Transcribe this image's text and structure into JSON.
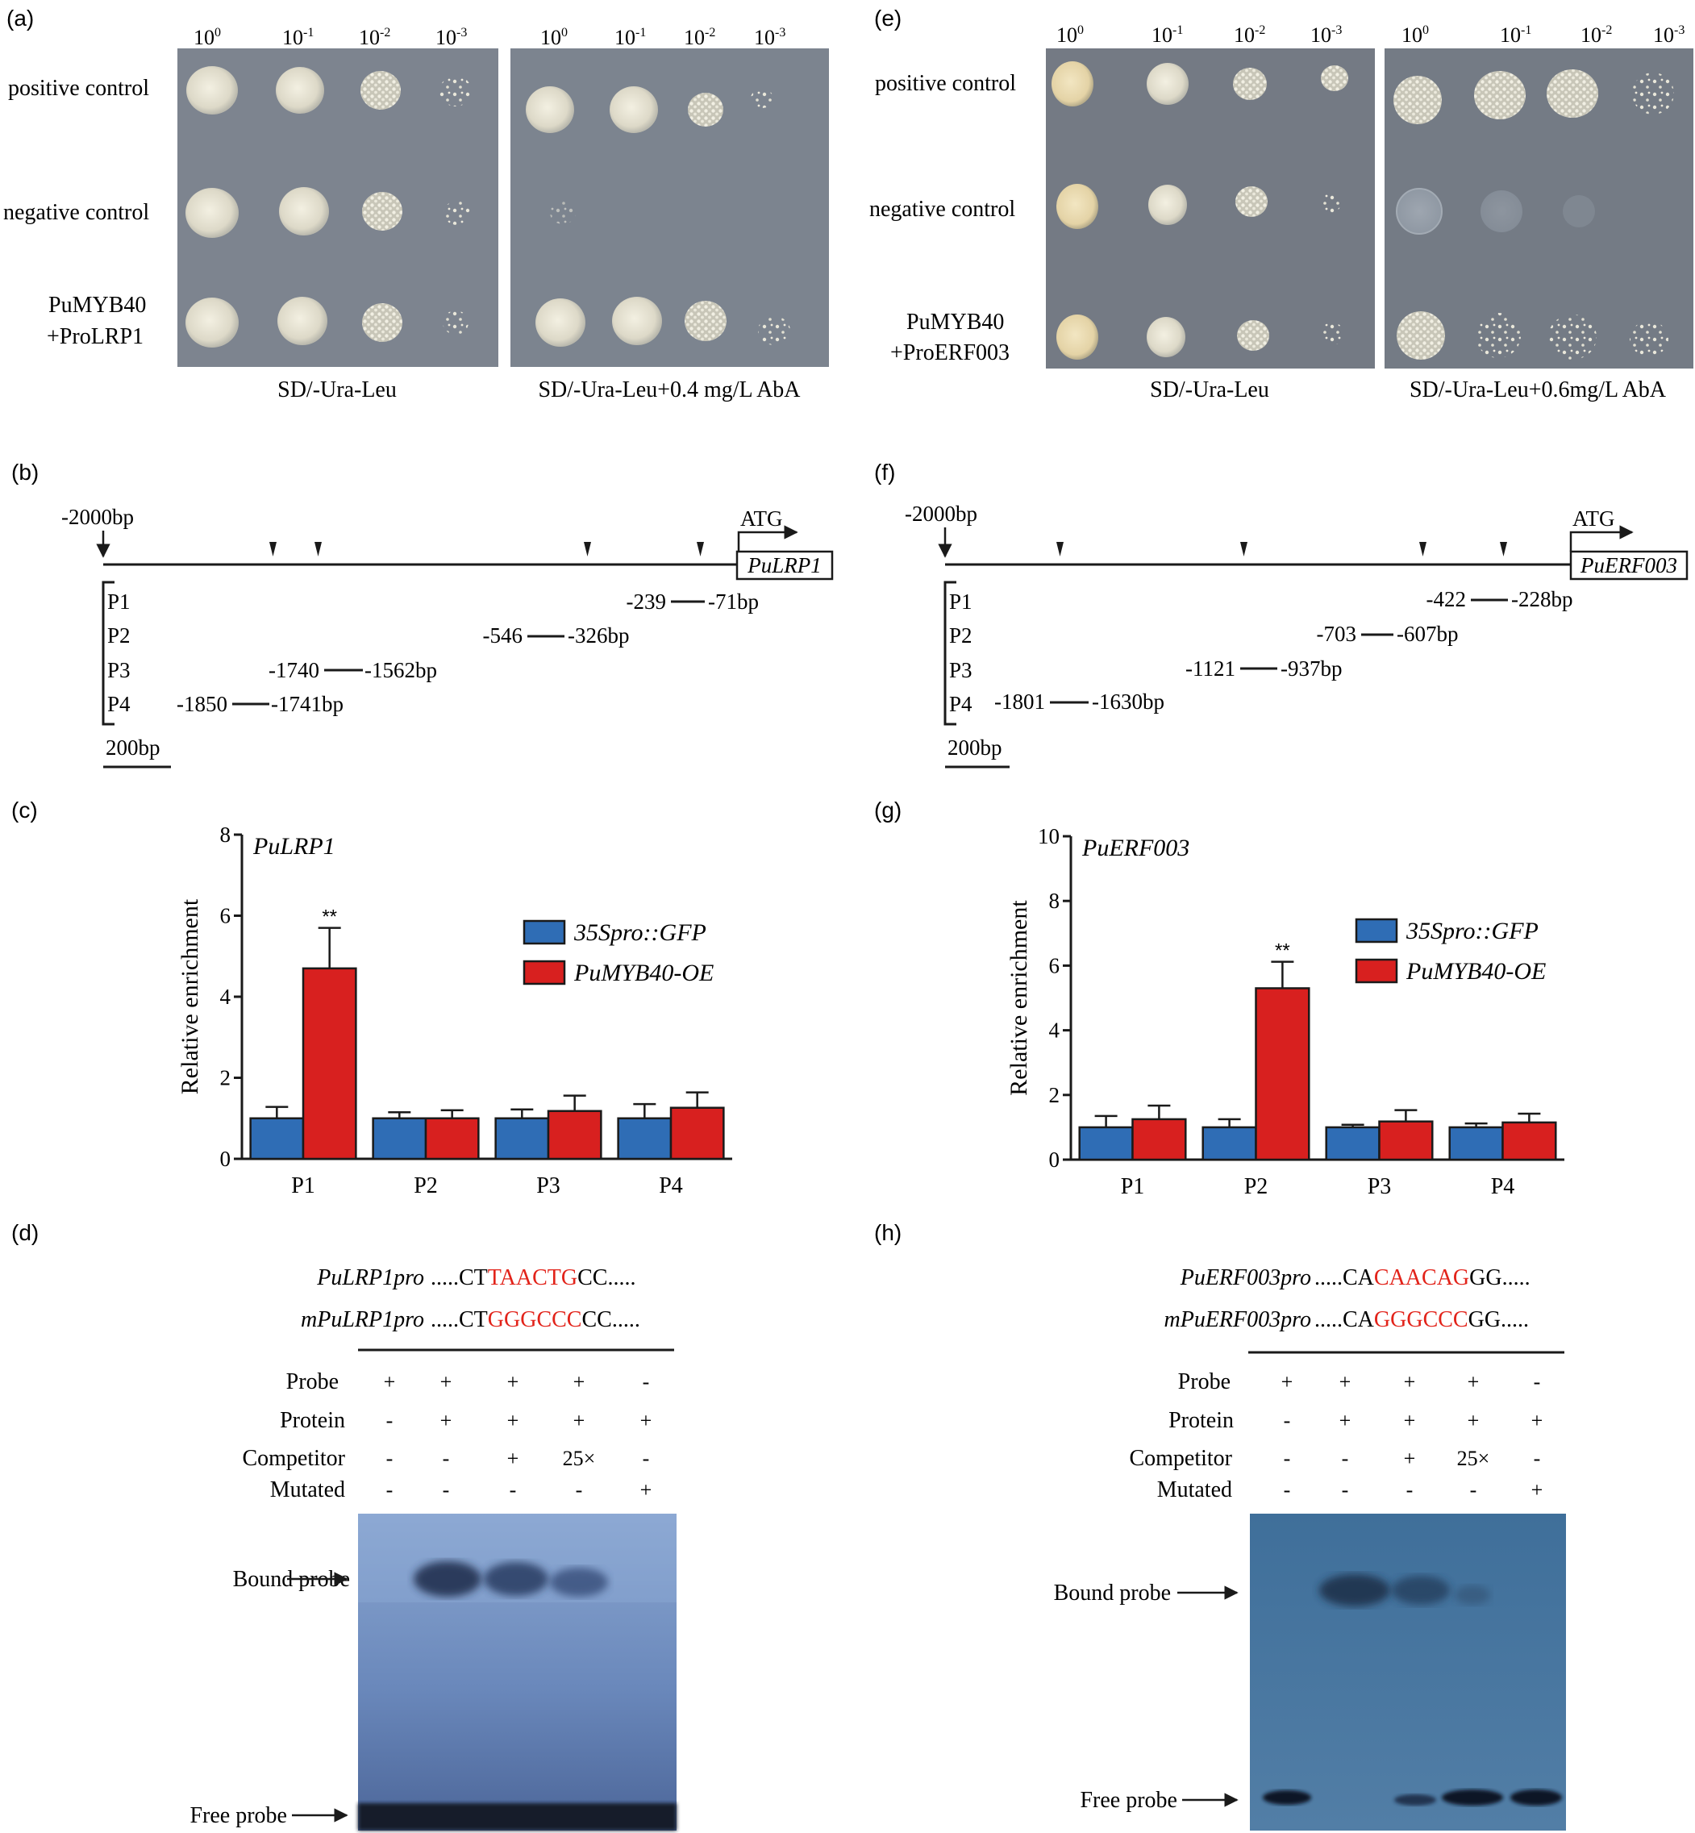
{
  "colors": {
    "gfp": "#2f6db5",
    "oe": "#d8201f",
    "motif": "#e2231a"
  },
  "panels": {
    "a": {
      "label": "(a)",
      "dilutions": [
        "10",
        "10",
        "10",
        "10"
      ],
      "exponents": [
        "0",
        "-1",
        "-2",
        "-3"
      ],
      "rows": {
        "positive": "positive control",
        "negative": "negative control",
        "sample_line1": "PuMYB40",
        "sample_line2": "+ProLRP1"
      },
      "plate_left_label": "SD/-Ura-Leu",
      "plate_right_label": "SD/-Ura-Leu+0.4 mg/L AbA"
    },
    "e": {
      "label": "(e)",
      "dilutions": [
        "10",
        "10",
        "10",
        "10"
      ],
      "exponents": [
        "0",
        "-1",
        "-2",
        "-3"
      ],
      "rows": {
        "positive": "positive control",
        "negative": "negative control",
        "sample_line1": "PuMYB40",
        "sample_line2": "+ProERF003"
      },
      "plate_left_label": "SD/-Ura-Leu",
      "plate_right_label": "SD/-Ura-Leu+0.6mg/L AbA"
    },
    "b": {
      "label": "(b)",
      "start": "-2000bp",
      "atg": "ATG",
      "gene": "PuLRP1",
      "probes": [
        {
          "name": "P1",
          "from": "-239",
          "to": "-71bp"
        },
        {
          "name": "P2",
          "from": "-546",
          "to": "-326bp"
        },
        {
          "name": "P3",
          "from": "-1740",
          "to": "-1562bp"
        },
        {
          "name": "P4",
          "from": "-1850",
          "to": "-1741bp"
        }
      ],
      "scale": "200bp"
    },
    "f": {
      "label": "(f)",
      "start": "-2000bp",
      "atg": "ATG",
      "gene": "PuERF003",
      "probes": [
        {
          "name": "P1",
          "from": "-422",
          "to": "-228bp"
        },
        {
          "name": "P2",
          "from": "-703",
          "to": "-607bp"
        },
        {
          "name": "P3",
          "from": "-1121",
          "to": "-937bp"
        },
        {
          "name": "P4",
          "from": "-1801",
          "to": "-1630bp"
        }
      ],
      "scale": "200bp"
    },
    "c": {
      "label": "(c)"
    },
    "g": {
      "label": "(g)"
    },
    "d": {
      "label": "(d)",
      "seq1_name": "PuLRP1pro",
      "seq1_pre": ".....CT",
      "seq1_motif": "TAACTG",
      "seq1_post": "CC.....",
      "seq2_name": "mPuLRP1pro",
      "seq2_pre": ".....CT",
      "seq2_motif": "GGGCCC",
      "seq2_post": "CC.....",
      "rows": [
        {
          "name": "Probe",
          "vals": [
            "+",
            "+",
            "+",
            "+",
            "-"
          ]
        },
        {
          "name": "Protein",
          "vals": [
            "-",
            "+",
            "+",
            "+",
            "+"
          ]
        },
        {
          "name": "Competitor",
          "vals": [
            "-",
            "-",
            "+",
            "25×",
            "-"
          ]
        },
        {
          "name": "Mutated",
          "vals": [
            "-",
            "-",
            "-",
            "-",
            "+"
          ]
        }
      ],
      "bound": "Bound probe",
      "free": "Free probe"
    },
    "h": {
      "label": "(h)",
      "seq1_name": "PuERF003pro",
      "seq1_pre": ".....CA",
      "seq1_motif": "CAACAG",
      "seq1_post": "GG.....",
      "seq2_name": "mPuERF003pro",
      "seq2_pre": ".....CA",
      "seq2_motif": "GGGCCC",
      "seq2_post": "GG.....",
      "rows": [
        {
          "name": "Probe",
          "vals": [
            "+",
            "+",
            "+",
            "+",
            "-"
          ]
        },
        {
          "name": "Protein",
          "vals": [
            "-",
            "+",
            "+",
            "+",
            "+"
          ]
        },
        {
          "name": "Competitor",
          "vals": [
            "-",
            "-",
            "+",
            "25×",
            "-"
          ]
        },
        {
          "name": "Mutated",
          "vals": [
            "-",
            "-",
            "-",
            "-",
            "+"
          ]
        }
      ],
      "bound": "Bound probe",
      "free": "Free probe"
    }
  },
  "chart_data": [
    {
      "type": "bar",
      "title": "PuLRP1",
      "ylabel": "Relative enrichment",
      "ylim": [
        0,
        8
      ],
      "yticks": [
        0,
        2,
        4,
        6,
        8
      ],
      "categories": [
        "P1",
        "P2",
        "P3",
        "P4"
      ],
      "series": [
        {
          "name": "35Spro::GFP",
          "values": [
            1.0,
            1.0,
            1.0,
            1.0
          ],
          "errors": [
            0.28,
            0.15,
            0.22,
            0.35
          ]
        },
        {
          "name": "PuMYB40-OE",
          "values": [
            4.7,
            1.0,
            1.18,
            1.26
          ],
          "errors": [
            1.0,
            0.2,
            0.38,
            0.38
          ]
        }
      ],
      "annotations": [
        {
          "category": "P1",
          "series": "PuMYB40-OE",
          "text": "**"
        }
      ],
      "legend": "top-right"
    },
    {
      "type": "bar",
      "title": "PuERF003",
      "ylabel": "Relative enrichment",
      "ylim": [
        0,
        10
      ],
      "yticks": [
        0,
        2,
        4,
        6,
        8,
        10
      ],
      "categories": [
        "P1",
        "P2",
        "P3",
        "P4"
      ],
      "series": [
        {
          "name": "35Spro::GFP",
          "values": [
            1.0,
            1.0,
            1.0,
            1.0
          ],
          "errors": [
            0.35,
            0.25,
            0.08,
            0.12
          ]
        },
        {
          "name": "PuMYB40-OE",
          "values": [
            1.25,
            5.3,
            1.18,
            1.15
          ],
          "errors": [
            0.42,
            0.82,
            0.35,
            0.27
          ]
        }
      ],
      "annotations": [
        {
          "category": "P2",
          "series": "PuMYB40-OE",
          "text": "**"
        }
      ],
      "legend": "top-right"
    }
  ]
}
